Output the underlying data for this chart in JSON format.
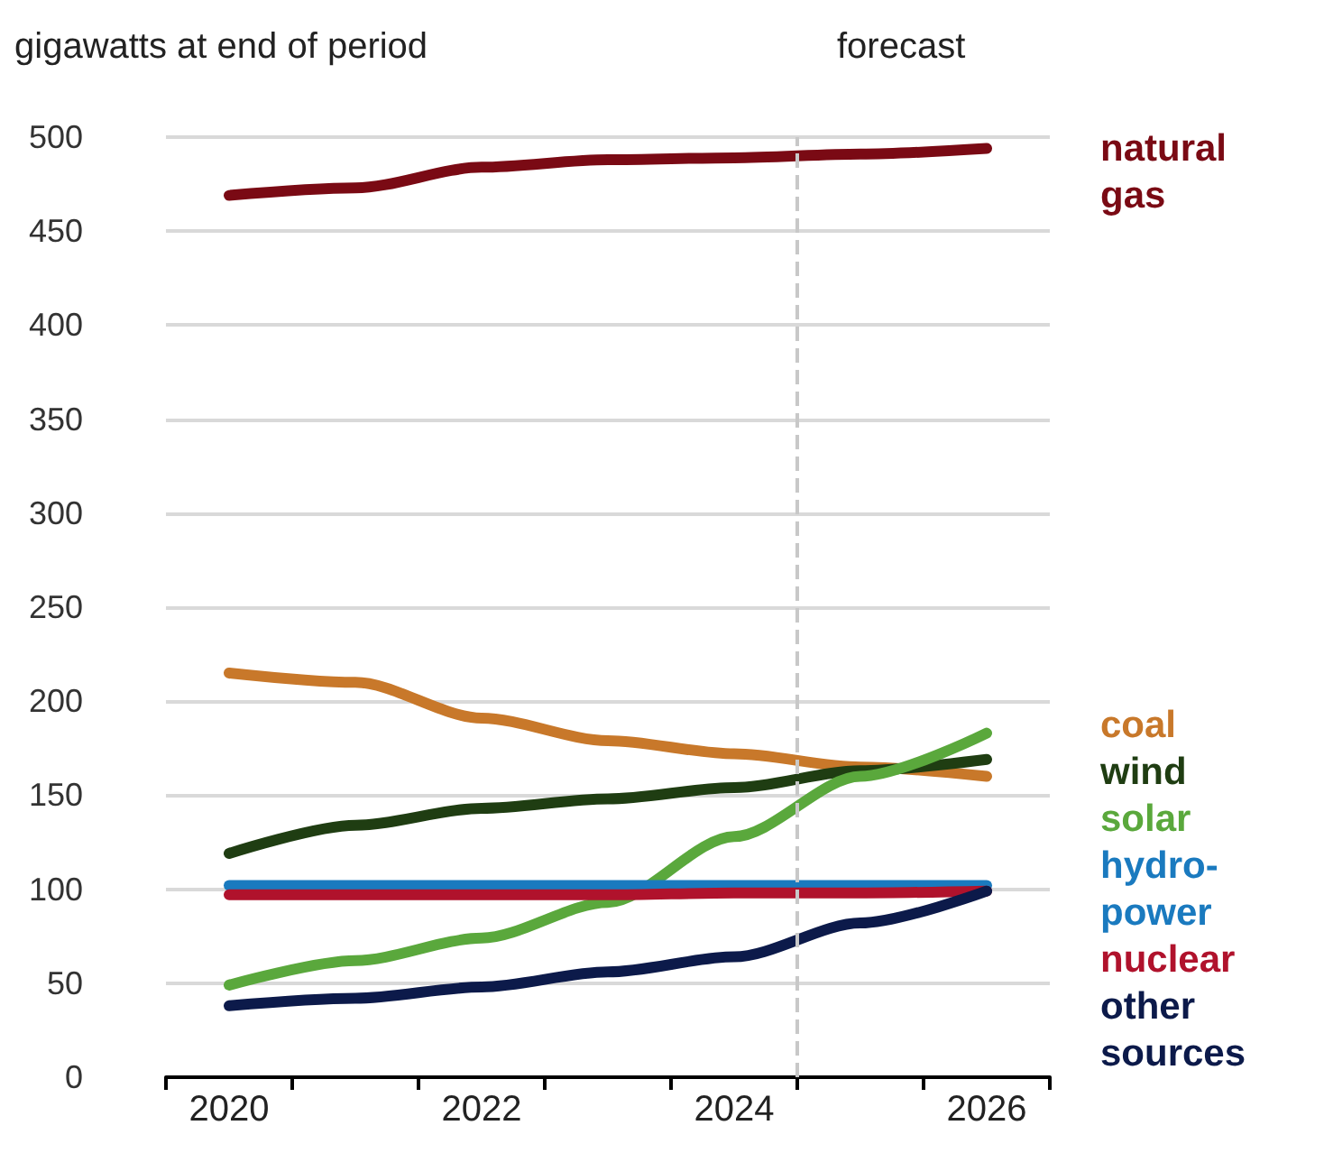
{
  "chart_data": {
    "type": "line",
    "ylabel": "gigawatts at end of period",
    "x": [
      2020,
      2021,
      2022,
      2023,
      2024,
      2025,
      2026
    ],
    "xlim": [
      2019.5,
      2026.5
    ],
    "xticks": [
      {
        "value": 2019.5,
        "label": null
      },
      {
        "value": 2020,
        "label": "2020"
      },
      {
        "value": 2020.5,
        "label": null
      },
      {
        "value": 2021.5,
        "label": null
      },
      {
        "value": 2022,
        "label": "2022"
      },
      {
        "value": 2022.5,
        "label": null
      },
      {
        "value": 2023.5,
        "label": null
      },
      {
        "value": 2024,
        "label": "2024"
      },
      {
        "value": 2024.5,
        "label": null
      },
      {
        "value": 2025.5,
        "label": null
      },
      {
        "value": 2026,
        "label": "2026"
      },
      {
        "value": 2026.5,
        "label": null
      }
    ],
    "ylim": [
      0,
      500
    ],
    "yticks": [
      0,
      50,
      100,
      150,
      200,
      250,
      300,
      350,
      400,
      450,
      500
    ],
    "grid": "y",
    "legend": false,
    "marker": "none",
    "line_style": "solid",
    "ref_lines": [
      {
        "axis": "x",
        "value": 2024.5,
        "label": "forecast",
        "color": "#c8c8c8",
        "line_style": "dashed"
      }
    ],
    "series": [
      {
        "name": "natural gas",
        "color": "#7a0a14",
        "values": [
          469,
          473,
          484,
          488,
          489,
          491,
          494
        ]
      },
      {
        "name": "coal",
        "color": "#c8782a",
        "values": [
          215,
          210,
          191,
          179,
          172,
          165,
          160
        ]
      },
      {
        "name": "wind",
        "color": "#1f3d12",
        "values": [
          119,
          134,
          143,
          148,
          154,
          163,
          169
        ]
      },
      {
        "name": "solar",
        "color": "#5aa83c",
        "values": [
          49,
          62,
          74,
          93,
          128,
          160,
          183
        ]
      },
      {
        "name": "hydro-power",
        "color": "#1a7abf",
        "values": [
          102,
          102,
          102,
          102,
          102,
          102,
          102
        ]
      },
      {
        "name": "nuclear",
        "color": "#b0122c",
        "values": [
          97,
          97,
          97,
          97,
          98,
          98,
          99
        ]
      },
      {
        "name": "other sources",
        "color": "#0c1a4a",
        "values": [
          38,
          42,
          48,
          56,
          64,
          82,
          99
        ]
      }
    ]
  }
}
